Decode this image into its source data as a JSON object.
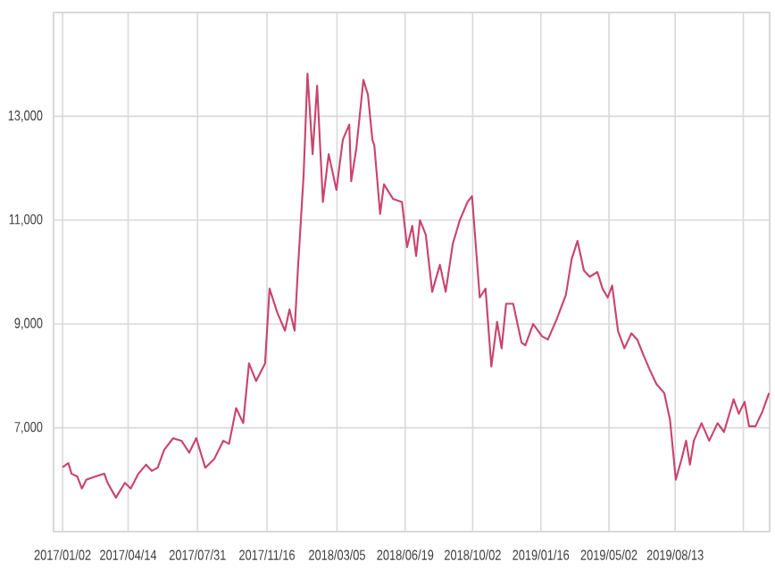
{
  "chart_data": {
    "type": "line",
    "color": "#c8456e",
    "grid": true,
    "marker": "none",
    "line_style": "solid",
    "xlim": [
      "2016-12-19",
      "2020-01-07"
    ],
    "xticks": [
      {
        "value": "2017-01-02",
        "label": "2017/01/02"
      },
      {
        "value": "2017-04-14",
        "label": "2017/04/14"
      },
      {
        "value": "2017-07-31",
        "label": "2017/07/31"
      },
      {
        "value": "2017-11-16",
        "label": "2017/11/16"
      },
      {
        "value": "2018-03-05",
        "label": "2018/03/05"
      },
      {
        "value": "2018-06-19",
        "label": "2018/06/19"
      },
      {
        "value": "2018-10-02",
        "label": "2018/10/02"
      },
      {
        "value": "2019-01-16",
        "label": "2019/01/16"
      },
      {
        "value": "2019-05-02",
        "label": "2019/05/02"
      },
      {
        "value": "2019-08-13",
        "label": "2019/08/13"
      },
      {
        "value": "2019-11-27",
        "label": null
      }
    ],
    "ylim": [
      5000,
      15000
    ],
    "yticks": [
      {
        "value": 7000,
        "label": "7,000"
      },
      {
        "value": 9000,
        "label": "9,000"
      },
      {
        "value": 11000,
        "label": "11,000"
      },
      {
        "value": 13000,
        "label": "13,000"
      }
    ],
    "x": [
      "2017-01-02",
      "2017-01-11",
      "2017-01-16",
      "2017-01-25",
      "2017-02-01",
      "2017-02-08",
      "2017-02-22",
      "2017-03-08",
      "2017-03-13",
      "2017-03-26",
      "2017-04-09",
      "2017-04-18",
      "2017-04-30",
      "2017-05-12",
      "2017-05-21",
      "2017-05-30",
      "2017-06-09",
      "2017-06-23",
      "2017-07-06",
      "2017-07-18",
      "2017-07-29",
      "2017-08-12",
      "2017-08-26",
      "2017-09-09",
      "2017-09-18",
      "2017-09-29",
      "2017-10-10",
      "2017-10-19",
      "2017-10-30",
      "2017-11-13",
      "2017-11-20",
      "2017-12-02",
      "2017-12-14",
      "2017-12-21",
      "2017-12-29",
      "2018-01-03",
      "2018-01-12",
      "2018-01-18",
      "2018-01-26",
      "2018-02-02",
      "2018-02-11",
      "2018-02-20",
      "2018-03-04",
      "2018-03-14",
      "2018-03-24",
      "2018-03-27",
      "2018-04-04",
      "2018-04-15",
      "2018-04-22",
      "2018-04-29",
      "2018-05-02",
      "2018-05-11",
      "2018-05-17",
      "2018-05-31",
      "2018-06-14",
      "2018-06-22",
      "2018-06-30",
      "2018-07-06",
      "2018-07-12",
      "2018-07-21",
      "2018-07-31",
      "2018-08-12",
      "2018-08-21",
      "2018-09-01",
      "2018-09-12",
      "2018-09-24",
      "2018-10-01",
      "2018-10-13",
      "2018-10-22",
      "2018-10-31",
      "2018-11-09",
      "2018-11-16",
      "2018-11-23",
      "2018-12-04",
      "2018-12-17",
      "2018-12-23",
      "2019-01-04",
      "2019-01-18",
      "2019-01-27",
      "2019-02-10",
      "2019-02-24",
      "2019-03-05",
      "2019-03-14",
      "2019-03-24",
      "2019-04-02",
      "2019-04-14",
      "2019-04-22",
      "2019-04-30",
      "2019-05-07",
      "2019-05-16",
      "2019-05-26",
      "2019-06-06",
      "2019-06-15",
      "2019-06-24",
      "2019-07-04",
      "2019-07-15",
      "2019-07-27",
      "2019-08-05",
      "2019-08-14",
      "2019-08-23",
      "2019-08-30",
      "2019-09-05",
      "2019-09-11",
      "2019-09-23",
      "2019-10-05",
      "2019-10-18",
      "2019-10-28",
      "2019-11-12",
      "2019-11-20",
      "2019-11-29",
      "2019-12-06",
      "2019-12-16",
      "2019-12-27",
      "2020-01-06"
    ],
    "values": [
      6240,
      6320,
      6115,
      6060,
      5830,
      6000,
      6060,
      6115,
      5940,
      5655,
      5940,
      5830,
      6115,
      6290,
      6170,
      6230,
      6575,
      6800,
      6750,
      6520,
      6800,
      6230,
      6400,
      6750,
      6690,
      7380,
      7090,
      8240,
      7900,
      8240,
      9680,
      9220,
      8870,
      9280,
      8870,
      10030,
      11870,
      13820,
      12270,
      13590,
      11350,
      12270,
      11580,
      12550,
      12840,
      11750,
      12380,
      13700,
      13420,
      12550,
      12440,
      11120,
      11690,
      11410,
      11350,
      10480,
      10890,
      10310,
      11000,
      10720,
      9620,
      10140,
      9620,
      10540,
      11000,
      11350,
      11460,
      9510,
      9680,
      8180,
      9040,
      8530,
      9390,
      9390,
      8640,
      8590,
      9000,
      8760,
      8700,
      9100,
      9560,
      10250,
      10600,
      10030,
      9910,
      10000,
      9680,
      9510,
      9740,
      8870,
      8530,
      8820,
      8700,
      8420,
      8130,
      7840,
      7670,
      7150,
      6000,
      6400,
      6750,
      6290,
      6750,
      7090,
      6750,
      7090,
      6920,
      7550,
      7270,
      7500,
      7030,
      7030,
      7320,
      7670
    ]
  }
}
